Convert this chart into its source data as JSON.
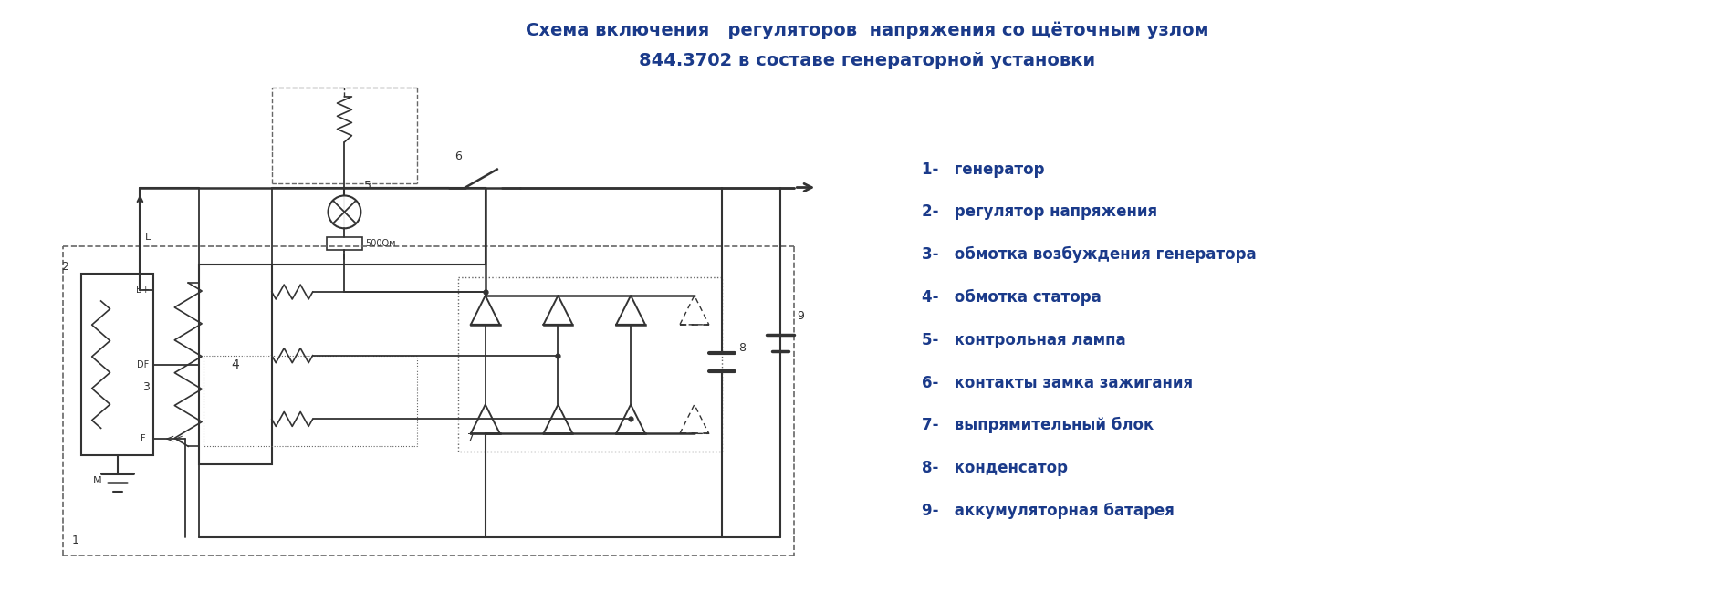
{
  "title_line1": "Схема включения   регуляторов  напряжения со щёточным узлом",
  "title_line2": "844.3702 в составе генераторной установки",
  "title_color": "#1a3a8a",
  "title_fontsize": 14,
  "legend_items": [
    "1-   генератор",
    "2-   регулятор напряжения",
    "3-   обмотка возбуждения генератора",
    "4-   обмотка статора",
    "5-   контрольная лампа",
    "6-   контакты замка зажигания",
    "7-   выпрямительный блок",
    "8-   конденсатор",
    "9-   аккумуляторная батарея"
  ],
  "legend_color": "#1a3a8a",
  "legend_fontsize": 12,
  "background_color": "#ffffff",
  "line_color": "#333333",
  "dashed_color": "#666666"
}
